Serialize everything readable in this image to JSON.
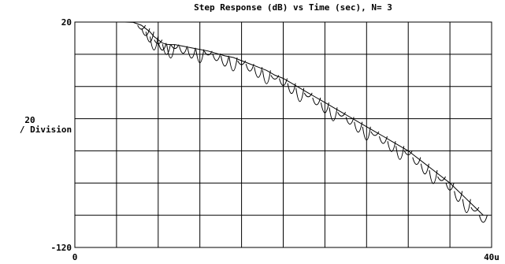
{
  "chart_data": {
    "type": "line",
    "title": "Step Response (dB) vs Time (sec), N= 3",
    "ylabel_lines": [
      "20",
      "/ Division"
    ],
    "ylim": [
      -120,
      20
    ],
    "y_tick_labels": {
      "top": "20",
      "bottom": "-120"
    },
    "x_tick_labels": {
      "left": "0",
      "right": "40u"
    },
    "xlim_label": [
      "0",
      "40u"
    ],
    "x_divisions": 10,
    "y_divisions": 7,
    "grid": true,
    "series": [
      {
        "x_div": [
          0.8,
          1.0,
          1.2,
          1.4,
          1.6,
          1.7,
          1.8,
          1.9,
          2.0,
          2.1,
          2.2,
          2.3,
          2.4,
          2.6,
          2.8,
          3.0,
          3.2,
          3.4,
          3.6,
          3.8,
          4.0,
          4.2,
          4.4,
          4.6,
          4.8,
          5.0,
          5.2,
          5.4,
          5.6,
          5.8,
          6.0,
          6.2,
          6.4,
          6.6,
          6.8,
          7.0,
          7.2,
          7.4,
          7.6,
          7.8,
          8.0,
          8.2,
          8.4,
          8.6,
          8.8,
          9.0,
          9.2,
          9.4,
          9.6,
          9.8
        ],
        "y_db": [
          20.0,
          20.0,
          20.0,
          19.8,
          18.0,
          16.0,
          14.0,
          11.0,
          9.0,
          7.0,
          6.2,
          6.0,
          6.0,
          5.0,
          4.0,
          3.0,
          2.0,
          0.5,
          -1.0,
          -2.0,
          -4.0,
          -6.0,
          -8.0,
          -10.0,
          -13.0,
          -15.0,
          -18.0,
          -21.0,
          -24.0,
          -27.0,
          -30.0,
          -33.0,
          -36.0,
          -39.0,
          -42.0,
          -45.0,
          -48.0,
          -51.0,
          -54.0,
          -57.0,
          -60.0,
          -64.0,
          -68.0,
          -72.0,
          -76.0,
          -80.0,
          -85.0,
          -90.0,
          -95.0,
          -100.0
        ]
      }
    ]
  }
}
